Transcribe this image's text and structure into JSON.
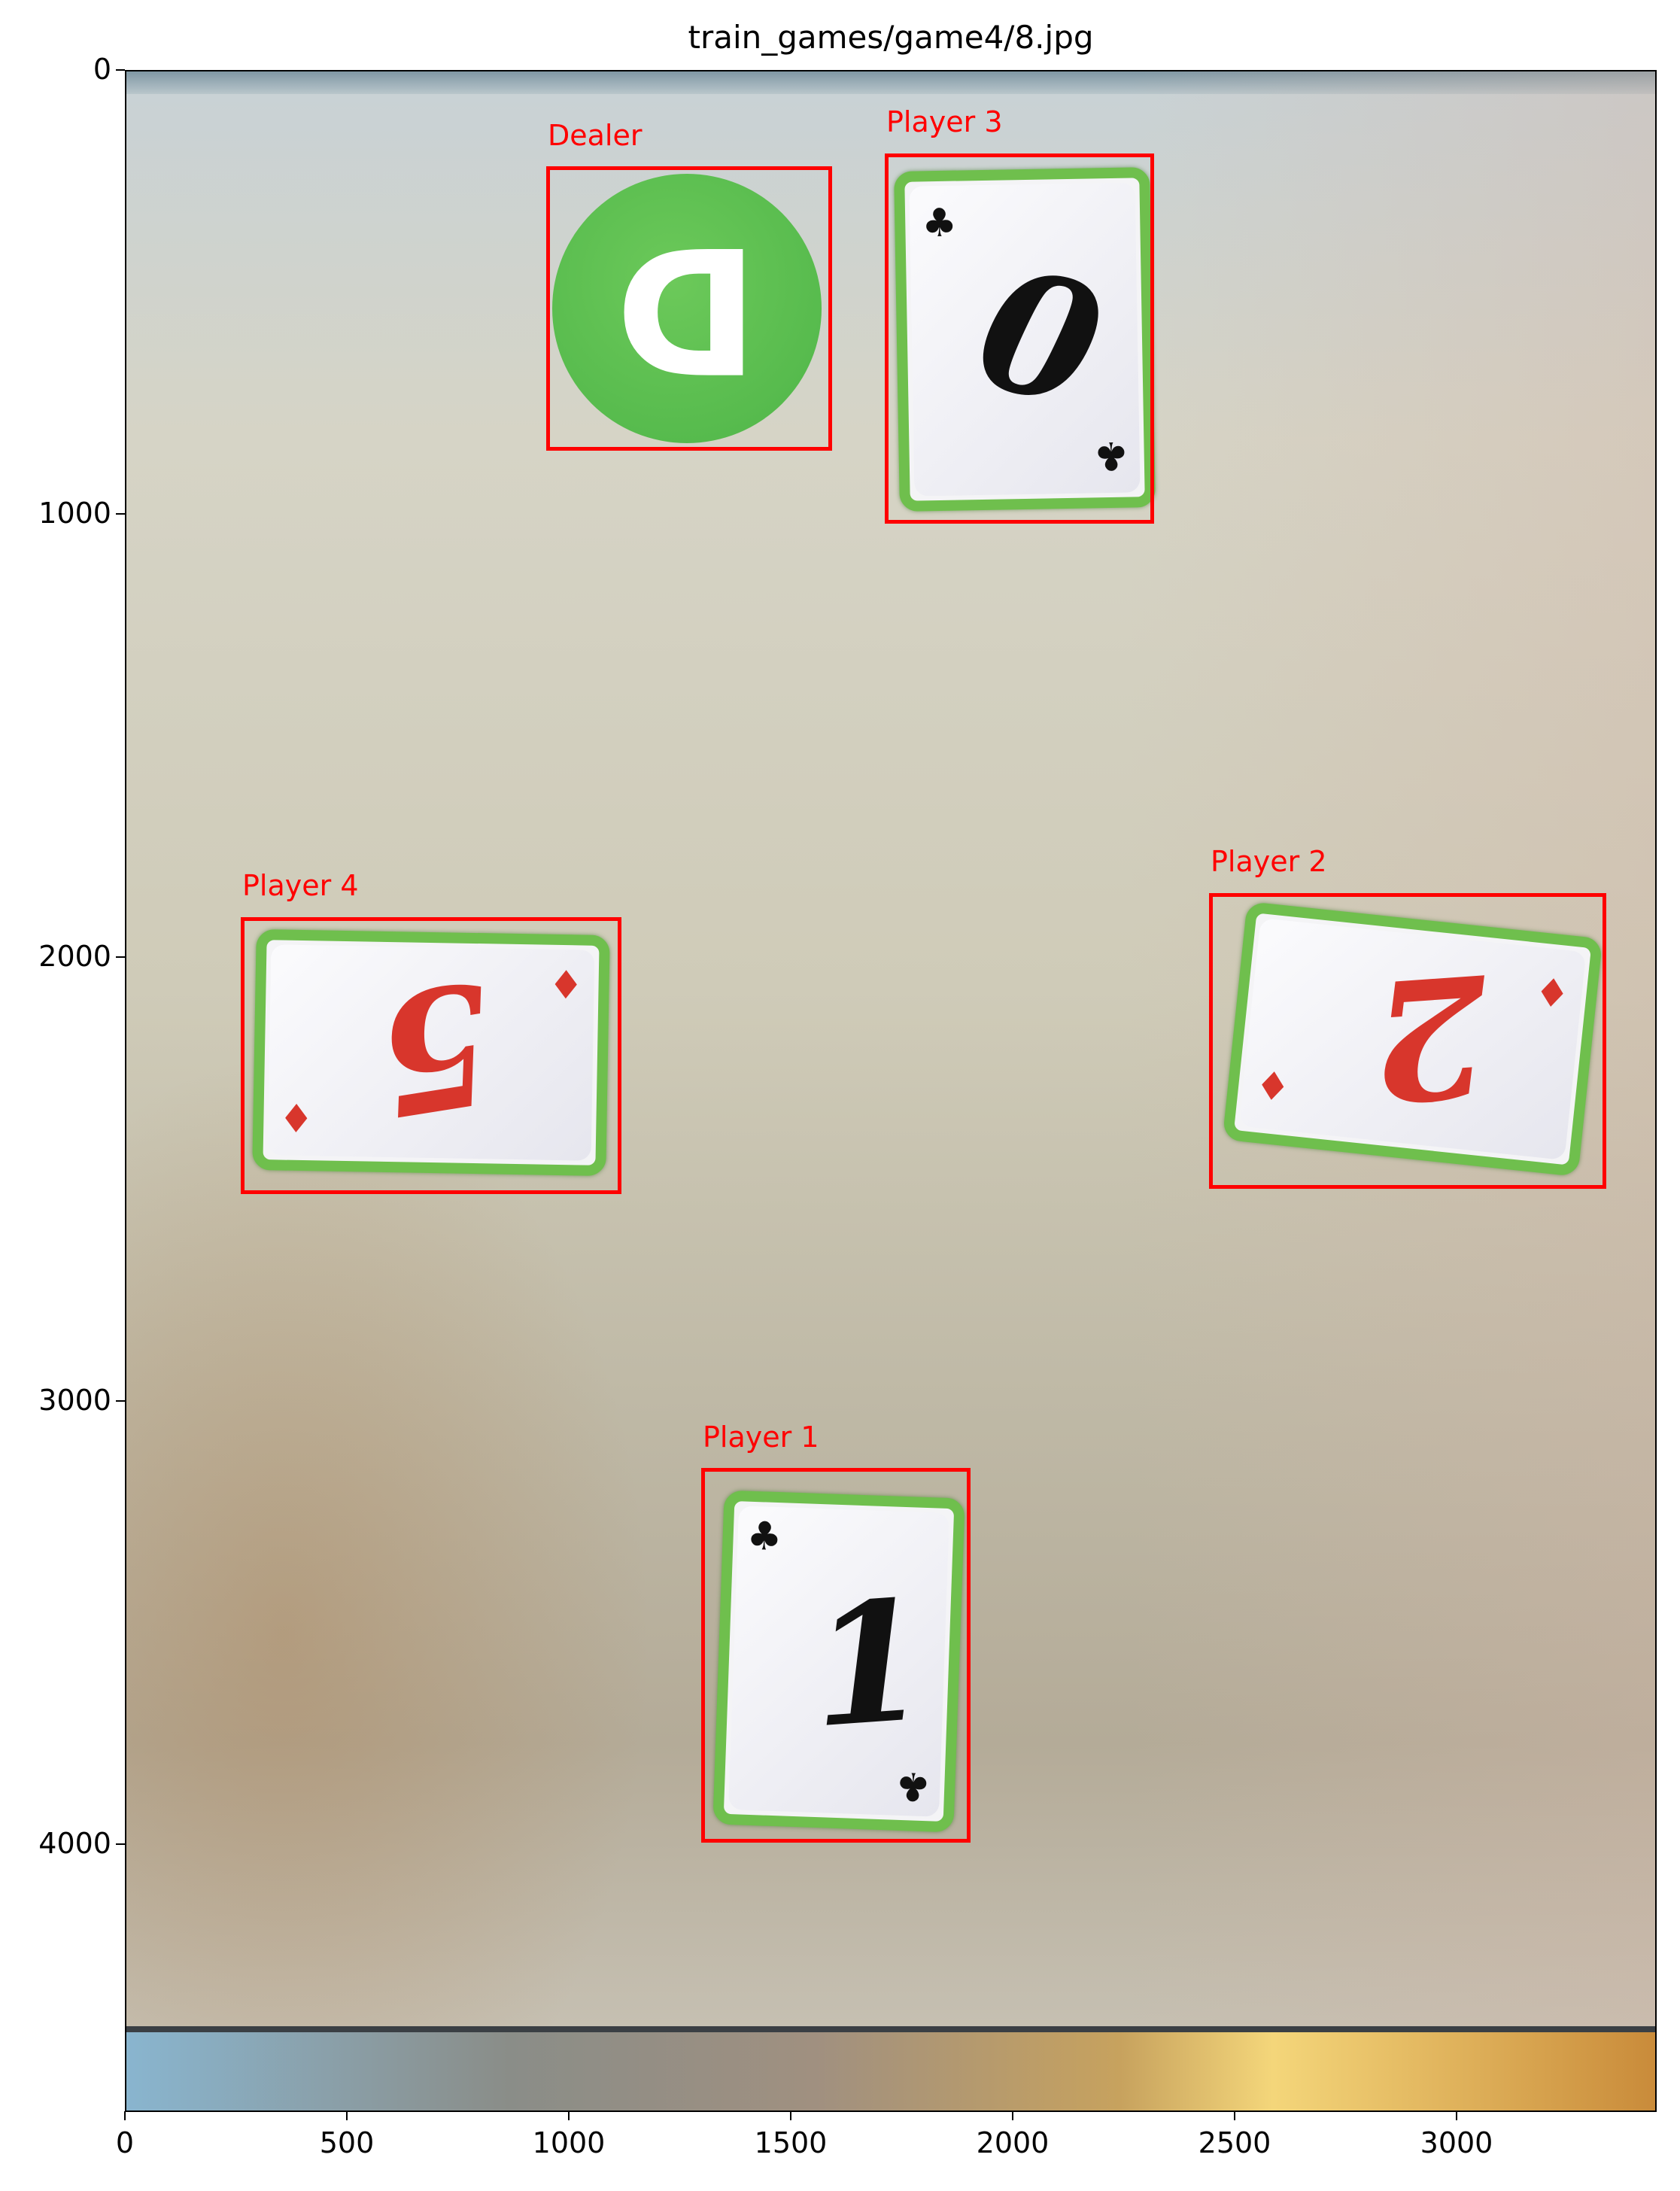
{
  "figure": {
    "title": "train_games/game4/8.jpg"
  },
  "axes": {
    "x_ticks": [
      "0",
      "500",
      "1000",
      "1500",
      "2000",
      "2500",
      "3000"
    ],
    "y_ticks": [
      "0",
      "1000",
      "2000",
      "3000",
      "4000"
    ]
  },
  "detections": [
    {
      "label": "Dealer",
      "object": "dealer chip",
      "symbol": "D",
      "color": "#4eb548"
    },
    {
      "label": "Player 3",
      "object": "card",
      "rank": "0",
      "suit": "♣",
      "suit_name": "club-icon",
      "color": "#111111"
    },
    {
      "label": "Player 4",
      "object": "card",
      "rank": "5",
      "suit": "♦",
      "suit_name": "diamond-icon",
      "color": "#d8362c"
    },
    {
      "label": "Player 2",
      "object": "card",
      "rank": "2",
      "suit": "♦",
      "suit_name": "diamond-icon",
      "color": "#d8362c"
    },
    {
      "label": "Player 1",
      "object": "card",
      "rank": "1",
      "suit": "♣",
      "suit_name": "club-icon",
      "color": "#111111"
    }
  ],
  "colors": {
    "box": "#ff0000",
    "card_border": "#6fbf4d"
  }
}
